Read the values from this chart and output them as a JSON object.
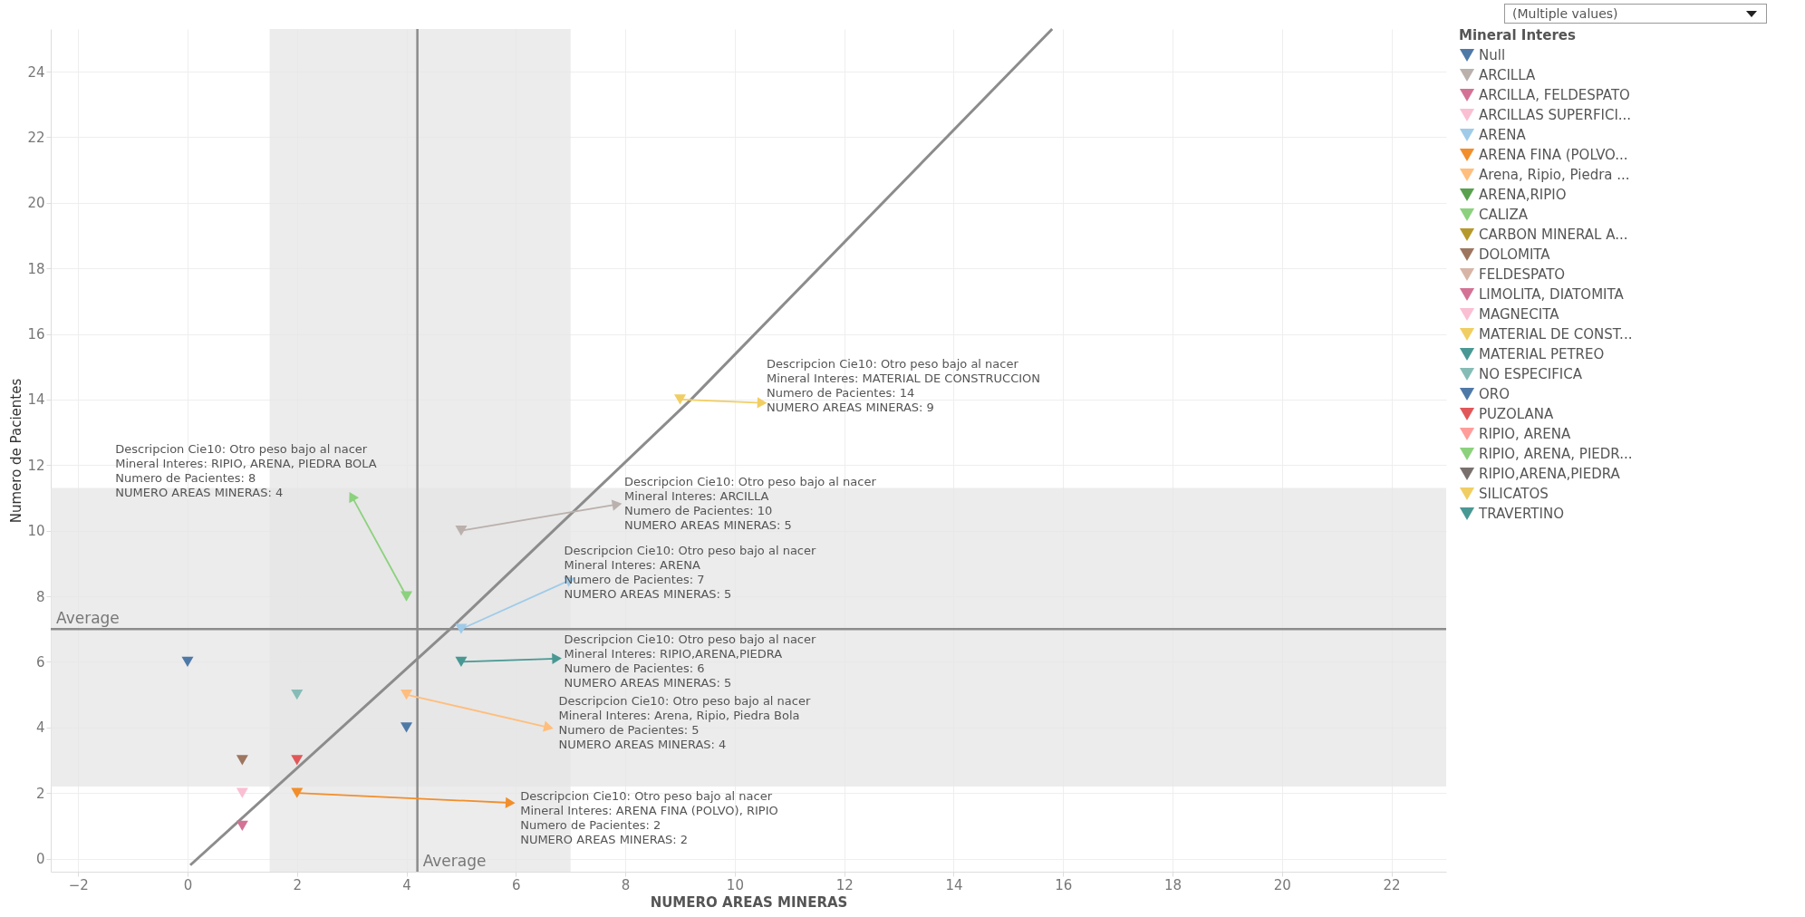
{
  "chart_data": {
    "type": "scatter",
    "xlabel": "NUMERO AREAS MINERAS",
    "ylabel": "Numero de Pacientes",
    "legend_title": "Mineral Interes",
    "legend": "right",
    "grid": true,
    "marker": "triangle",
    "xlim": [
      -2.5,
      23
    ],
    "xticks": [
      -2,
      0,
      2,
      4,
      6,
      8,
      10,
      12,
      14,
      16,
      18,
      20,
      22
    ],
    "ylim": [
      -0.4,
      25.3
    ],
    "yticks": [
      0,
      2,
      4,
      6,
      8,
      10,
      12,
      14,
      16,
      18,
      20,
      22,
      24
    ],
    "series": [
      {
        "name": "Null",
        "color": "#4e79a7",
        "x": [
          0
        ],
        "values": [
          6
        ]
      },
      {
        "name": "ARCILLA",
        "color": "#bab0ac",
        "x": [
          5
        ],
        "values": [
          10
        ]
      },
      {
        "name": "ARCILLA, FELDESPATO",
        "color": "#d37295",
        "x": [
          1
        ],
        "values": [
          1
        ]
      },
      {
        "name": "ARCILLAS SUPERFICI...",
        "color": "#fabfd2"
      },
      {
        "name": "ARENA",
        "color": "#a0cbe8",
        "x": [
          5
        ],
        "values": [
          7
        ]
      },
      {
        "name": "ARENA FINA (POLVO...",
        "color": "#f28e2b",
        "x": [
          2
        ],
        "values": [
          2
        ]
      },
      {
        "name": "Arena, Ripio, Piedra ...",
        "color": "#ffbe7d",
        "x": [
          4
        ],
        "values": [
          5
        ]
      },
      {
        "name": "ARENA,RIPIO",
        "color": "#59a14f"
      },
      {
        "name": "CALIZA",
        "color": "#8cd17d"
      },
      {
        "name": "CARBON MINERAL A...",
        "color": "#b6992d"
      },
      {
        "name": "DOLOMITA",
        "color": "#9d7660",
        "x": [
          1
        ],
        "values": [
          3
        ]
      },
      {
        "name": "FELDESPATO",
        "color": "#d7b5a6"
      },
      {
        "name": "LIMOLITA, DIATOMITA",
        "color": "#d37295"
      },
      {
        "name": "MAGNECITA",
        "color": "#fabfd2",
        "x": [
          1
        ],
        "values": [
          2
        ]
      },
      {
        "name": "MATERIAL DE CONST...",
        "color": "#f1ce63",
        "x": [
          9
        ],
        "values": [
          14
        ]
      },
      {
        "name": "MATERIAL PETREO",
        "color": "#499894",
        "x": [
          5
        ],
        "values": [
          6
        ]
      },
      {
        "name": "NO ESPECIFICA",
        "color": "#86bcb6",
        "x": [
          2
        ],
        "values": [
          5
        ]
      },
      {
        "name": "ORO",
        "color": "#4e79a7",
        "x": [
          4
        ],
        "values": [
          4
        ]
      },
      {
        "name": "PUZOLANA",
        "color": "#e15759",
        "x": [
          2
        ],
        "values": [
          3
        ]
      },
      {
        "name": "RIPIO, ARENA",
        "color": "#ff9d9a"
      },
      {
        "name": "RIPIO, ARENA, PIEDR...",
        "color": "#8cd17d",
        "x": [
          4
        ],
        "values": [
          8
        ]
      },
      {
        "name": "RIPIO,ARENA,PIEDRA",
        "color": "#79706e"
      },
      {
        "name": "SILICATOS",
        "color": "#f1ce63"
      },
      {
        "name": "TRAVERTINO",
        "color": "#499894"
      },
      {
        "type": "line",
        "marker": "none",
        "color": "#8c8c8c",
        "x": [
          0.05,
          4.8,
          9.2,
          15.8
        ],
        "values": [
          -0.2,
          7,
          14,
          25.3
        ]
      }
    ],
    "ref_lines": [
      {
        "axis": "x",
        "value": 4.2,
        "label": "Average",
        "color": "#8c8c8c"
      },
      {
        "axis": "y",
        "value": 7,
        "label": "Average",
        "color": "#8c8c8c"
      }
    ],
    "bands": [
      {
        "axis": "x",
        "from": 1.5,
        "to": 7,
        "color": "#e6e6e6"
      },
      {
        "axis": "y",
        "from": 2.2,
        "to": 11.3,
        "color": "#e6e6e6"
      }
    ],
    "annotations": [
      {
        "text": "Descripcion Cie10: Otro peso bajo al nacer\nMineral Interes: MATERIAL DE CONSTRUCCION\nNumero de Pacientes: 14\nNUMERO AREAS MINERAS: 9",
        "x": 9,
        "y": 14
      },
      {
        "text": "Descripcion Cie10: Otro peso bajo al nacer\nMineral Interes: RIPIO, ARENA, PIEDRA BOLA\nNumero de Pacientes: 8\nNUMERO AREAS MINERAS: 4",
        "x": 4,
        "y": 8
      },
      {
        "text": "Descripcion Cie10: Otro peso bajo al nacer\nMineral Interes: ARCILLA\nNumero de Pacientes: 10\nNUMERO AREAS MINERAS: 5",
        "x": 5,
        "y": 10
      },
      {
        "text": "Descripcion Cie10: Otro peso bajo al nacer\nMineral Interes: ARENA\nNumero de Pacientes: 7\nNUMERO AREAS MINERAS: 5",
        "x": 5,
        "y": 7
      },
      {
        "text": "Descripcion Cie10: Otro peso bajo al nacer\nMineral Interes: RIPIO,ARENA,PIEDRA\nNumero de Pacientes: 6\nNUMERO AREAS MINERAS: 5",
        "x": 5,
        "y": 6
      },
      {
        "text": "Descripcion Cie10: Otro peso bajo al nacer\nMineral Interes: Arena, Ripio, Piedra Bola\nNumero de Pacientes: 5\nNUMERO AREAS MINERAS: 4",
        "x": 4,
        "y": 5
      },
      {
        "text": "Descripcion Cie10: Otro peso bajo al nacer\nMineral Interes: ARENA FINA (POLVO), RIPIO\nNumero de Pacientes: 2\nNUMERO AREAS MINERAS: 2",
        "x": 2,
        "y": 2
      },
      "(Multiple values)"
    ]
  }
}
